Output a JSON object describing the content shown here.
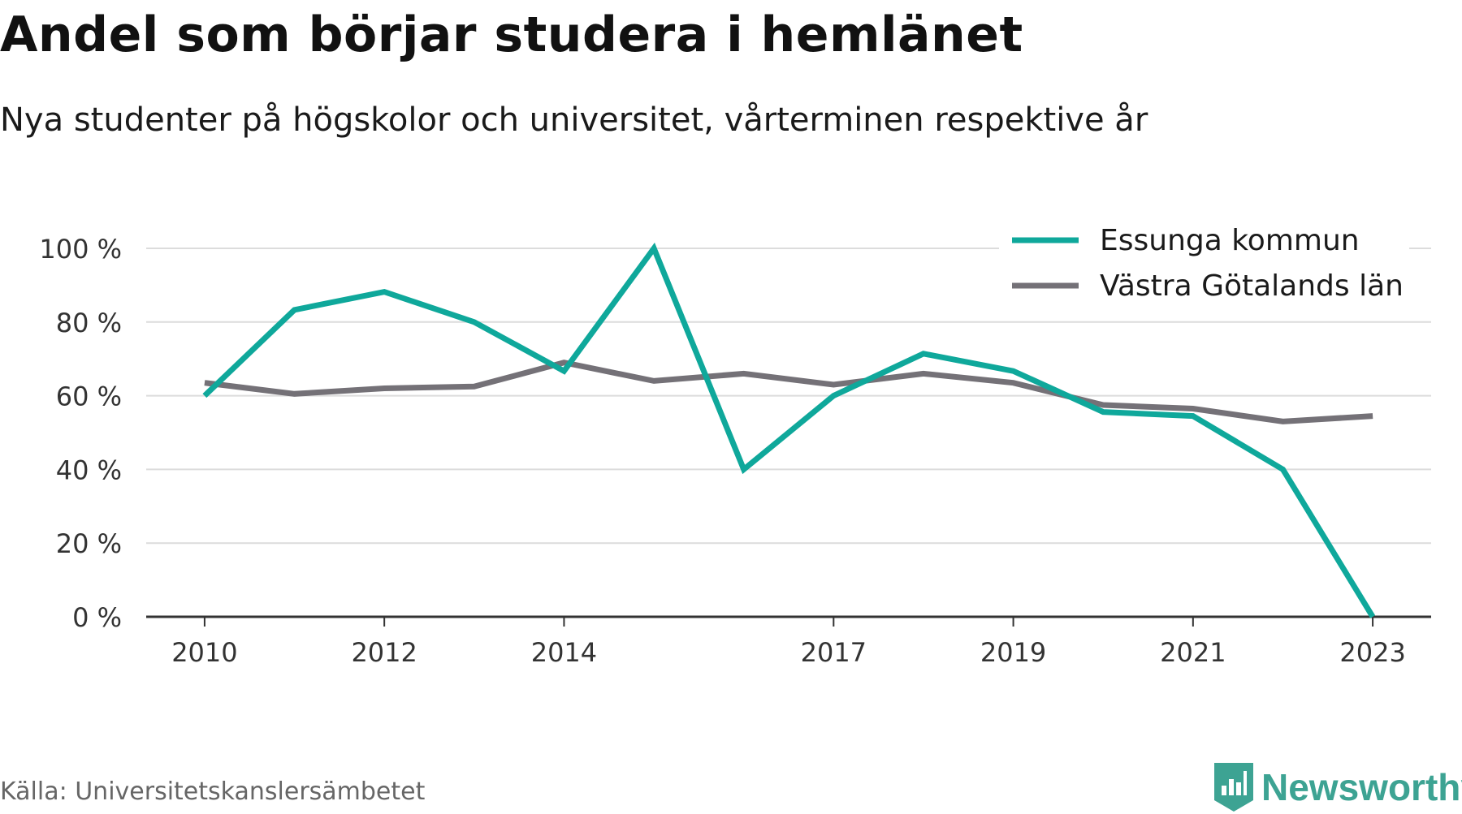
{
  "title": "Andel som börjar studera i hemlänet",
  "subtitle": "Nya studenter på högskolor och universitet, vårterminen respektive år",
  "source": "Källa: Universitetskanslersämbetet",
  "brand": {
    "name": "Newsworthy",
    "icon": "newsworthy-logo-icon",
    "color": "#3da393"
  },
  "chart_data": {
    "type": "line",
    "x": [
      2010,
      2011,
      2012,
      2013,
      2014,
      2015,
      2016,
      2017,
      2018,
      2019,
      2020,
      2021,
      2022,
      2023
    ],
    "x_tick_labels": [
      "2010",
      "2012",
      "2014",
      "2017",
      "2019",
      "2021",
      "2023"
    ],
    "x_ticks": [
      2010,
      2012,
      2014,
      2017,
      2019,
      2021,
      2023
    ],
    "xlim": [
      2009.35,
      2023.65
    ],
    "y_ticks": [
      0,
      20,
      40,
      60,
      80,
      100
    ],
    "y_tick_labels": [
      "0 %",
      "20 %",
      "40 %",
      "60 %",
      "80 %",
      "100 %"
    ],
    "ylim": [
      0,
      100
    ],
    "grid": true,
    "legend_position": "top-right",
    "xlabel": "",
    "ylabel": "",
    "series": [
      {
        "name": "Essunga kommun",
        "color": "#0fa89b",
        "values": [
          60,
          83.3,
          88.2,
          80,
          66.7,
          100,
          40,
          60,
          71.4,
          66.7,
          55.6,
          54.5,
          40,
          0
        ]
      },
      {
        "name": "Västra Götalands län",
        "color": "#747177",
        "values": [
          63.5,
          60.5,
          62,
          62.5,
          69,
          64,
          66,
          63,
          66,
          63.5,
          57.5,
          56.5,
          53,
          54.5
        ]
      }
    ]
  }
}
